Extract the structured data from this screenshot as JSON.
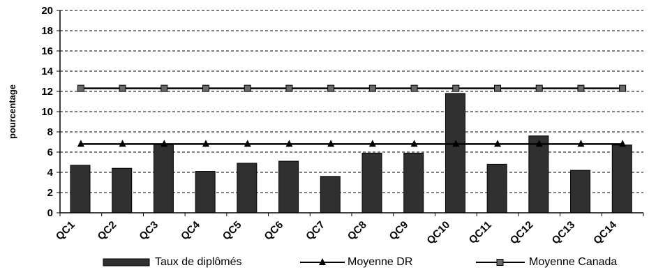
{
  "chart_data": {
    "type": "bar",
    "categories": [
      "QC1",
      "QC2",
      "QC3",
      "QC4",
      "QC5",
      "QC6",
      "QC7",
      "QC8",
      "QC9",
      "QC10",
      "QC11",
      "QC12",
      "QC13",
      "QC14"
    ],
    "series": [
      {
        "name": "Taux de diplômés",
        "type": "bar",
        "color": "#303030",
        "values": [
          4.7,
          4.4,
          6.8,
          4.1,
          4.9,
          5.1,
          3.6,
          5.9,
          5.9,
          11.8,
          4.8,
          7.6,
          4.2,
          6.7
        ]
      },
      {
        "name": "Moyenne DR",
        "type": "line",
        "marker": "triangle",
        "color": "#000000",
        "values": [
          6.8,
          6.8,
          6.8,
          6.8,
          6.8,
          6.8,
          6.8,
          6.8,
          6.8,
          6.8,
          6.8,
          6.8,
          6.8,
          6.8
        ]
      },
      {
        "name": "Moyenne Canada",
        "type": "line",
        "marker": "square",
        "color": "#000000",
        "values": [
          12.3,
          12.3,
          12.3,
          12.3,
          12.3,
          12.3,
          12.3,
          12.3,
          12.3,
          12.3,
          12.3,
          12.3,
          12.3,
          12.3
        ]
      }
    ],
    "ylabel": "pourcentage",
    "ylim": [
      0,
      20
    ],
    "yticks": [
      0,
      2,
      4,
      6,
      8,
      10,
      12,
      14,
      16,
      18,
      20
    ],
    "grid": true,
    "legend": "bottom"
  }
}
